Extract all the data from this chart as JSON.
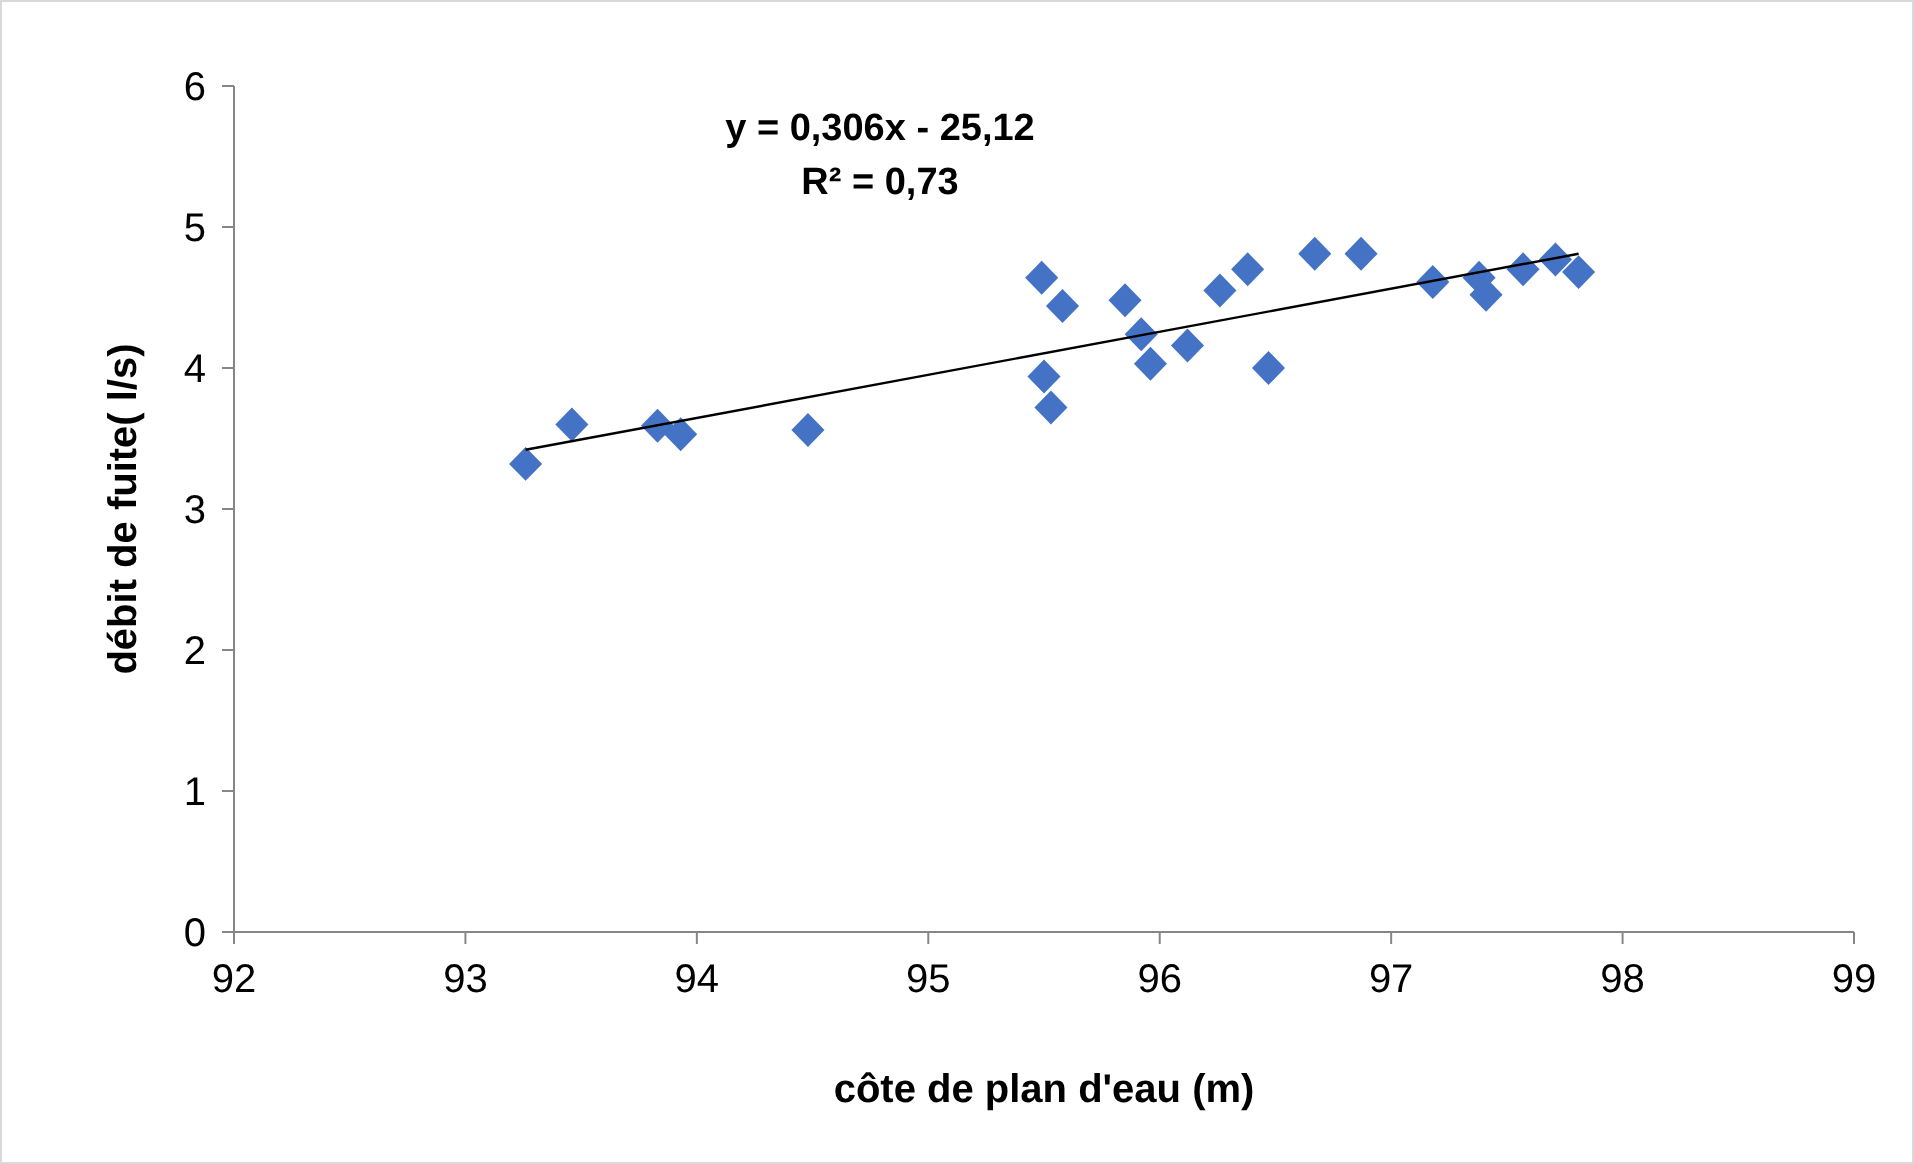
{
  "chart_data": {
    "type": "scatter",
    "xlabel": "côte de plan d'eau (m)",
    "ylabel": "débit de fuite( l/s)",
    "annotations": [
      "y = 0,306x - 25,12",
      "R² = 0,73"
    ],
    "xlim": [
      92,
      99
    ],
    "xticks": [
      92,
      93,
      94,
      95,
      96,
      97,
      98,
      99
    ],
    "ylim": [
      0,
      6
    ],
    "yticks": [
      0,
      1,
      2,
      3,
      4,
      5,
      6
    ],
    "grid": false,
    "marker": "diamond",
    "series": [
      {
        "color": "#4472c4",
        "x": [
          93.26,
          93.46,
          93.83,
          93.93,
          94.48,
          95.49,
          95.58,
          95.5,
          95.53,
          95.85,
          95.92,
          95.96,
          96.12,
          96.26,
          96.38,
          96.47,
          96.67,
          96.87,
          97.18,
          97.38,
          97.41,
          97.57,
          97.71,
          97.81
        ],
        "values": [
          3.32,
          3.6,
          3.59,
          3.53,
          3.56,
          4.64,
          4.44,
          3.94,
          3.72,
          4.48,
          4.24,
          4.03,
          4.16,
          4.55,
          4.7,
          4.0,
          4.81,
          4.81,
          4.61,
          4.64,
          4.52,
          4.7,
          4.77,
          4.68
        ]
      },
      {
        "type": "line",
        "marker": "none",
        "color": "#000000",
        "x": [
          93.26,
          97.81
        ],
        "values": [
          3.42,
          4.81
        ]
      }
    ]
  }
}
